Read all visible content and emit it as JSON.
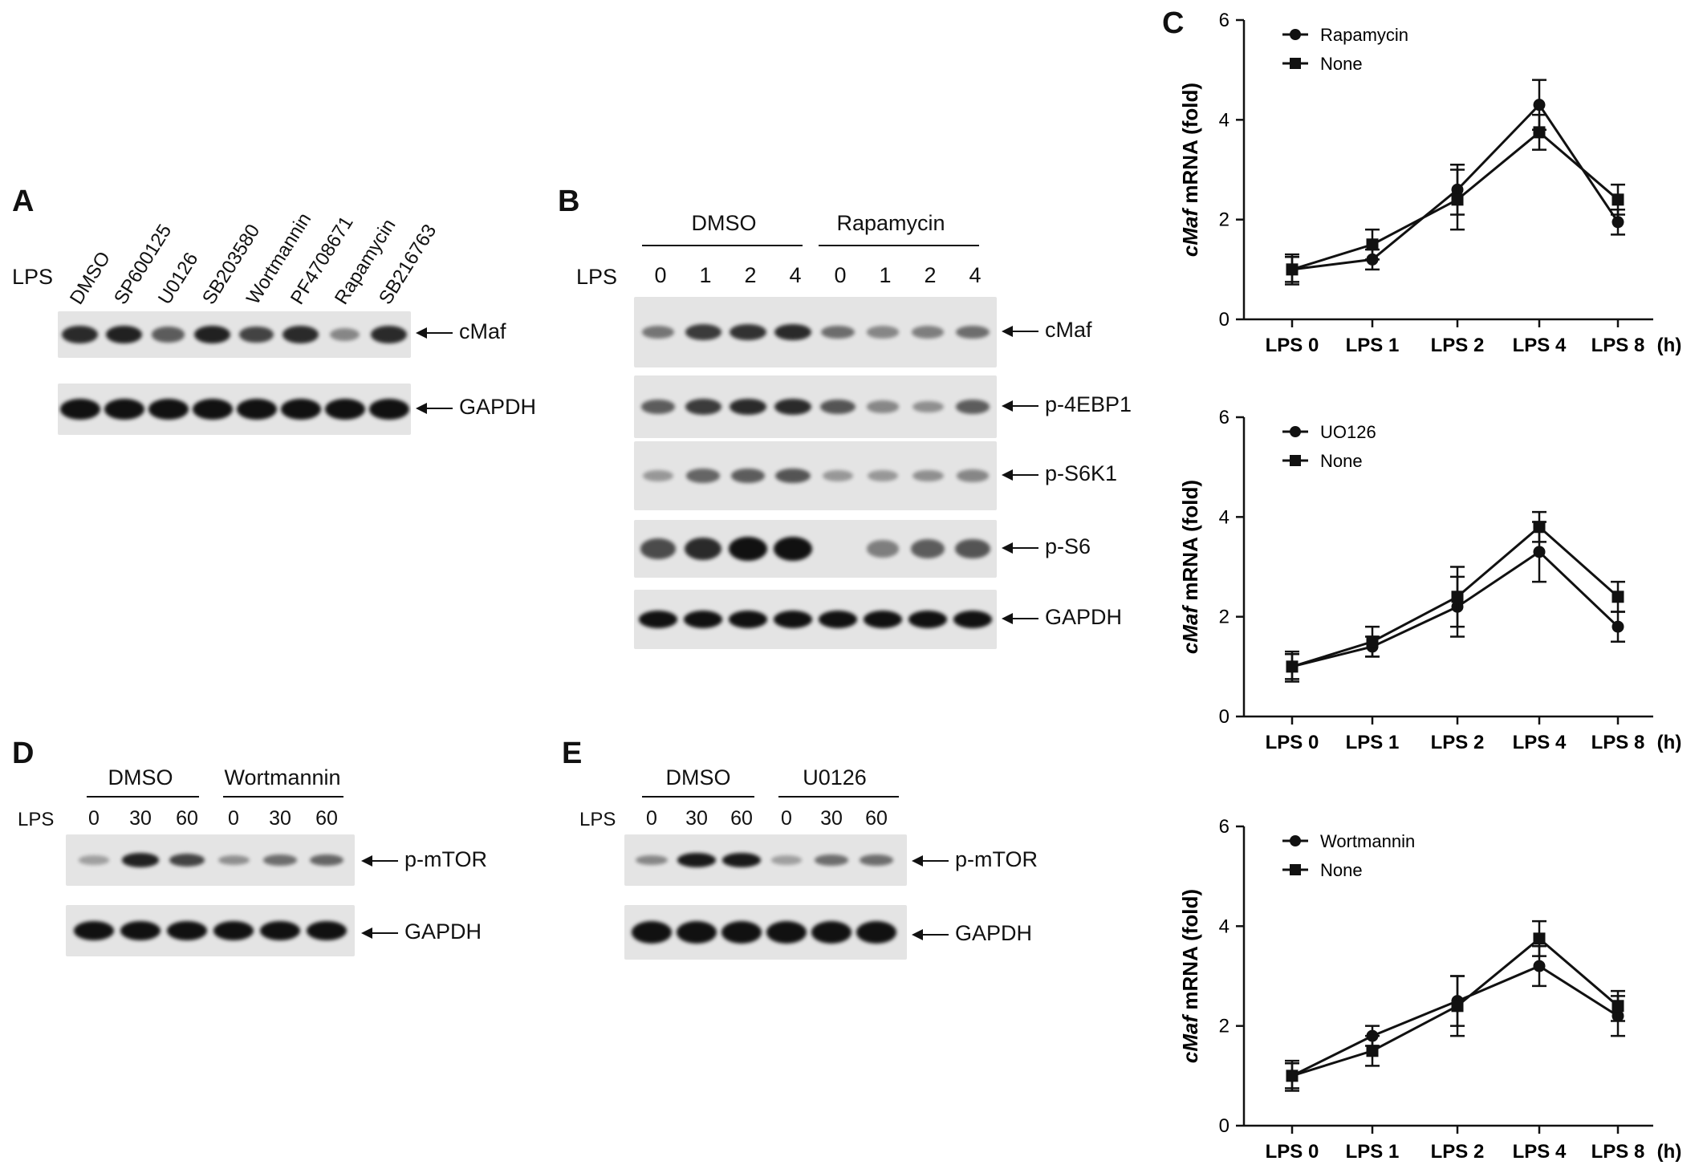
{
  "panelA": {
    "letter": "A",
    "lps": "LPS",
    "lanes": [
      "DMSO",
      "SP600125",
      "U0126",
      "SB203580",
      "Wortmannin",
      "PF4708671",
      "Rapamycin",
      "SB216763"
    ],
    "blots": [
      "cMaf",
      "GAPDH"
    ],
    "intensity": {
      "cMaf": [
        0.85,
        0.9,
        0.55,
        0.9,
        0.7,
        0.85,
        0.3,
        0.85
      ],
      "GAPDH": [
        1,
        1,
        1,
        1,
        1,
        1,
        1,
        1
      ]
    }
  },
  "panelB": {
    "letter": "B",
    "groups": [
      "DMSO",
      "Rapamycin"
    ],
    "lps": "LPS",
    "lanes": [
      "0",
      "1",
      "2",
      "4",
      "0",
      "1",
      "2",
      "4"
    ],
    "blots": [
      "cMaf",
      "p-4EBP1",
      "p-S6K1",
      "p-S6",
      "GAPDH"
    ],
    "intensity": {
      "cMaf": [
        0.4,
        0.75,
        0.8,
        0.85,
        0.45,
        0.3,
        0.35,
        0.45
      ],
      "p-4EBP1": [
        0.55,
        0.75,
        0.85,
        0.85,
        0.6,
        0.3,
        0.25,
        0.55
      ],
      "p-S6K1": [
        0.2,
        0.5,
        0.55,
        0.6,
        0.2,
        0.2,
        0.25,
        0.3
      ],
      "p-S6": [
        0.65,
        0.85,
        1,
        1,
        0,
        0.35,
        0.55,
        0.6
      ],
      "GAPDH": [
        1,
        1,
        1,
        1,
        1,
        1,
        1,
        1
      ]
    }
  },
  "panelD": {
    "letter": "D",
    "groups": [
      "DMSO",
      "Wortmannin"
    ],
    "lps": "LPS",
    "lanes": [
      "0",
      "30",
      "60",
      "0",
      "30",
      "60"
    ],
    "blots": [
      "p-mTOR",
      "GAPDH"
    ],
    "intensity": {
      "p-mTOR": [
        0.15,
        0.9,
        0.7,
        0.25,
        0.45,
        0.5
      ],
      "GAPDH": [
        1,
        1,
        1,
        1,
        1,
        1
      ]
    }
  },
  "panelE": {
    "letter": "E",
    "groups": [
      "DMSO",
      "U0126"
    ],
    "lps": "LPS",
    "lanes": [
      "0",
      "30",
      "60",
      "0",
      "30",
      "60"
    ],
    "blots": [
      "p-mTOR",
      "GAPDH"
    ],
    "intensity": {
      "p-mTOR": [
        0.3,
        0.95,
        0.95,
        0.15,
        0.45,
        0.45
      ],
      "GAPDH": [
        1,
        1,
        1,
        1,
        1,
        1
      ]
    }
  },
  "panelC": {
    "letter": "C",
    "unit": "(h)"
  },
  "chart_data": [
    {
      "type": "line",
      "categories": [
        "LPS 0",
        "LPS 1",
        "LPS 2",
        "LPS 4",
        "LPS 8"
      ],
      "ylabel_italic": "cMaf",
      "ylabel_rest": " mRNA (fold)",
      "ylim": [
        0,
        6
      ],
      "yticks": [
        0,
        2,
        4,
        6
      ],
      "series": [
        {
          "name": "Rapamycin",
          "marker": "circle",
          "values": [
            1.0,
            1.2,
            2.6,
            4.3,
            1.95
          ],
          "err": [
            0.3,
            0.2,
            0.5,
            0.5,
            0.25
          ]
        },
        {
          "name": "None",
          "marker": "square",
          "values": [
            1.0,
            1.5,
            2.4,
            3.75,
            2.4
          ],
          "err": [
            0.25,
            0.3,
            0.6,
            0.35,
            0.3
          ]
        }
      ]
    },
    {
      "type": "line",
      "categories": [
        "LPS 0",
        "LPS 1",
        "LPS 2",
        "LPS 4",
        "LPS 8"
      ],
      "ylabel_italic": "cMaf",
      "ylabel_rest": " mRNA (fold)",
      "ylim": [
        0,
        6
      ],
      "yticks": [
        0,
        2,
        4,
        6
      ],
      "series": [
        {
          "name": "UO126",
          "marker": "circle",
          "values": [
            1.0,
            1.4,
            2.2,
            3.3,
            1.8
          ],
          "err": [
            0.3,
            0.2,
            0.6,
            0.6,
            0.3
          ]
        },
        {
          "name": "None",
          "marker": "square",
          "values": [
            1.0,
            1.5,
            2.4,
            3.8,
            2.4
          ],
          "err": [
            0.25,
            0.3,
            0.6,
            0.3,
            0.3
          ]
        }
      ]
    },
    {
      "type": "line",
      "categories": [
        "LPS 0",
        "LPS 1",
        "LPS 2",
        "LPS 4",
        "LPS 8"
      ],
      "ylabel_italic": "cMaf",
      "ylabel_rest": " mRNA (fold)",
      "ylim": [
        0,
        6
      ],
      "yticks": [
        0,
        2,
        4,
        6
      ],
      "series": [
        {
          "name": "Wortmannin",
          "marker": "circle",
          "values": [
            1.0,
            1.8,
            2.5,
            3.2,
            2.2
          ],
          "err": [
            0.3,
            0.2,
            0.5,
            0.4,
            0.4
          ]
        },
        {
          "name": "None",
          "marker": "square",
          "values": [
            1.0,
            1.5,
            2.4,
            3.75,
            2.4
          ],
          "err": [
            0.25,
            0.3,
            0.6,
            0.35,
            0.3
          ]
        }
      ]
    }
  ]
}
